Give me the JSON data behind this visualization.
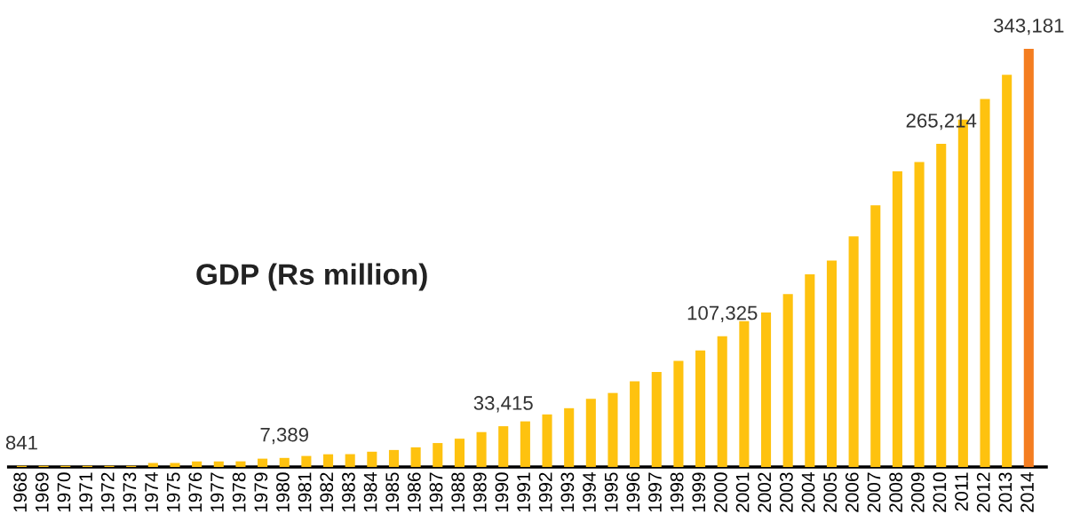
{
  "chart_data": {
    "type": "bar",
    "title": "GDP (Rs million)",
    "categories": [
      "1968",
      "1969",
      "1970",
      "1971",
      "1972",
      "1973",
      "1974",
      "1975",
      "1976",
      "1977",
      "1978",
      "1979",
      "1980",
      "1981",
      "1982",
      "1983",
      "1984",
      "1985",
      "1986",
      "1987",
      "1988",
      "1989",
      "1990",
      "1991",
      "1992",
      "1993",
      "1994",
      "1995",
      "1996",
      "1997",
      "1998",
      "1999",
      "2000",
      "2001",
      "2002",
      "2003",
      "2004",
      "2005",
      "2006",
      "2007",
      "2008",
      "2009",
      "2010",
      "2011",
      "2012",
      "2013",
      "2014"
    ],
    "values": [
      841,
      800,
      800,
      800,
      800,
      800,
      3300,
      3300,
      4600,
      4600,
      4600,
      6800,
      7389,
      9000,
      10400,
      10500,
      12500,
      13900,
      16100,
      19600,
      23200,
      28600,
      33415,
      37400,
      43100,
      48200,
      55900,
      60700,
      70300,
      78000,
      87100,
      95600,
      107325,
      119700,
      126800,
      141800,
      158000,
      169300,
      189200,
      214700,
      242500,
      250300,
      265214,
      285000,
      302000,
      321900,
      343181
    ],
    "value_labels": [
      "841",
      null,
      null,
      null,
      null,
      null,
      null,
      null,
      null,
      null,
      null,
      null,
      "7,389",
      null,
      null,
      null,
      null,
      null,
      null,
      null,
      null,
      null,
      "33,415",
      null,
      null,
      null,
      null,
      null,
      null,
      null,
      null,
      null,
      "107,325",
      null,
      null,
      null,
      null,
      null,
      null,
      null,
      null,
      null,
      "265,214",
      null,
      null,
      null,
      "343,181"
    ],
    "colors": [
      "#fec20f",
      "#fec20f",
      "#fec20f",
      "#fec20f",
      "#fec20f",
      "#fec20f",
      "#fec20f",
      "#fec20f",
      "#fec20f",
      "#fec20f",
      "#fec20f",
      "#fec20f",
      "#fec20f",
      "#fec20f",
      "#fec20f",
      "#fec20f",
      "#fec20f",
      "#fec20f",
      "#fec20f",
      "#fec20f",
      "#fec20f",
      "#fec20f",
      "#fec20f",
      "#fec20f",
      "#fec20f",
      "#fec20f",
      "#fec20f",
      "#fec20f",
      "#fec20f",
      "#fec20f",
      "#fec20f",
      "#fec20f",
      "#fec20f",
      "#fec20f",
      "#fec20f",
      "#fec20f",
      "#fec20f",
      "#fec20f",
      "#fec20f",
      "#fec20f",
      "#fec20f",
      "#fec20f",
      "#fec20f",
      "#fec20f",
      "#fec20f",
      "#fec20f",
      "#f47d20"
    ],
    "grid": false,
    "legend": false
  }
}
